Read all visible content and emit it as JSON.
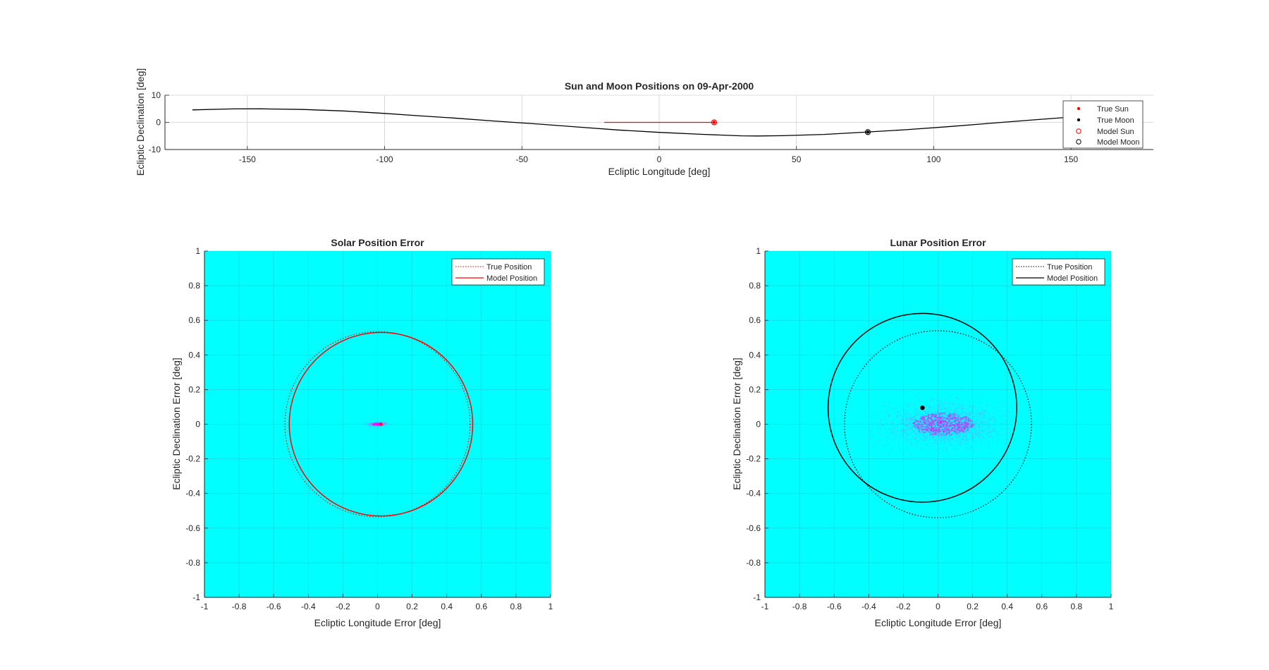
{
  "figure": {
    "background": "#ffffff",
    "colors": {
      "sun": "#ff0000",
      "moon": "#000000",
      "error_plot_bg": "#00ffff",
      "density_high": "#ff00ff",
      "density_low": "#8c8cff",
      "grid": "#d0d0d0",
      "axis": "#262626"
    }
  },
  "chart_data": [
    {
      "id": "top",
      "type": "line",
      "title": "Sun and Moon Positions on 09-Apr-2000",
      "xlabel": "Ecliptic Longitude [deg]",
      "ylabel": "Ecliptic Declination [deg]",
      "xlim": [
        -180,
        180
      ],
      "ylim": [
        -10,
        10
      ],
      "xticks": [
        -150,
        -100,
        -50,
        0,
        50,
        100,
        150
      ],
      "xtick_labels": [
        "-150",
        "-100",
        "-50",
        "0",
        "50",
        "100",
        "150"
      ],
      "yticks": [
        -10,
        0,
        10
      ],
      "ytick_labels": [
        "-10",
        "0",
        "10"
      ],
      "grid": true,
      "legend_position": "top-right",
      "legend": [
        {
          "label": "True Sun",
          "marker": "dot",
          "color": "#ff0000"
        },
        {
          "label": "True Moon",
          "marker": "dot",
          "color": "#000000"
        },
        {
          "label": "Model Sun",
          "marker": "circle",
          "color": "#ff0000"
        },
        {
          "label": "Model Moon",
          "marker": "circle",
          "color": "#000000"
        }
      ],
      "moon_track": {
        "color": "#000000",
        "x": [
          -170,
          -155,
          -145,
          -130,
          -115,
          -100,
          -90,
          -75,
          -60,
          -45,
          -30,
          -15,
          0,
          15,
          30,
          36,
          45,
          60,
          75,
          90,
          105,
          120,
          135,
          150,
          160
        ],
        "y": [
          4.6,
          4.95,
          5.0,
          4.75,
          4.2,
          3.3,
          2.6,
          1.6,
          0.5,
          -0.55,
          -1.7,
          -2.8,
          -3.7,
          -4.4,
          -4.95,
          -5.0,
          -4.9,
          -4.45,
          -3.6,
          -2.7,
          -1.6,
          -0.4,
          0.8,
          1.95,
          2.6
        ]
      },
      "sun_track": {
        "color": "#ff0000",
        "x": [
          -20,
          20
        ],
        "y": [
          0,
          0
        ]
      },
      "true_sun": {
        "x": 20,
        "y": 0
      },
      "model_sun": {
        "x": 20,
        "y": 0
      },
      "true_moon": {
        "x": 76,
        "y": -3.6
      },
      "model_moon": {
        "x": 76,
        "y": -3.6
      }
    },
    {
      "id": "solar",
      "type": "scatter",
      "title": "Solar Position Error",
      "xlabel": "Ecliptic Longitude Error [deg]",
      "ylabel": "Ecliptic Declination Error [deg]",
      "xlim": [
        -1,
        1
      ],
      "ylim": [
        -1,
        1
      ],
      "ticks": [
        -1,
        -0.8,
        -0.6,
        -0.4,
        -0.2,
        0,
        0.2,
        0.4,
        0.6,
        0.8,
        1
      ],
      "tick_labels": [
        "-1",
        "-0.8",
        "-0.6",
        "-0.4",
        "-0.2",
        "0",
        "0.2",
        "0.4",
        "0.6",
        "0.8",
        "1"
      ],
      "grid": true,
      "legend_position": "top-right",
      "legend": [
        {
          "label": "True Position",
          "style": "dotted",
          "color": "#ff0000"
        },
        {
          "label": "Model Position",
          "style": "solid",
          "color": "#ff0000"
        }
      ],
      "true_circle": {
        "cx": 0,
        "cy": 0,
        "r": 0.535
      },
      "model_circle": {
        "cx": 0.02,
        "cy": 0,
        "r": 0.53
      },
      "model_center": {
        "x": 0.02,
        "y": 0
      },
      "density_cloud": {
        "cx": 0.0,
        "cy": 0.0,
        "sx": 0.03,
        "sy": 0.006
      }
    },
    {
      "id": "lunar",
      "type": "scatter",
      "title": "Lunar Position Error",
      "xlabel": "Ecliptic Longitude Error [deg]",
      "ylabel": "Ecliptic Declination Error [deg]",
      "xlim": [
        -1,
        1
      ],
      "ylim": [
        -1,
        1
      ],
      "ticks": [
        -1,
        -0.8,
        -0.6,
        -0.4,
        -0.2,
        0,
        0.2,
        0.4,
        0.6,
        0.8,
        1
      ],
      "tick_labels": [
        "-1",
        "-0.8",
        "-0.6",
        "-0.4",
        "-0.2",
        "0",
        "0.2",
        "0.4",
        "0.6",
        "0.8",
        "1"
      ],
      "grid": true,
      "legend_position": "top-right",
      "legend": [
        {
          "label": "True Position",
          "style": "dotted",
          "color": "#000000"
        },
        {
          "label": "Model Position",
          "style": "solid",
          "color": "#000000"
        }
      ],
      "true_circle": {
        "cx": 0,
        "cy": 0,
        "r": 0.54
      },
      "model_circle": {
        "cx": -0.09,
        "cy": 0.095,
        "r": 0.545
      },
      "model_center": {
        "x": -0.09,
        "y": 0.095
      },
      "density_cloud": {
        "cx": 0.03,
        "cy": 0.0,
        "sx": 0.16,
        "sy": 0.06
      }
    }
  ]
}
